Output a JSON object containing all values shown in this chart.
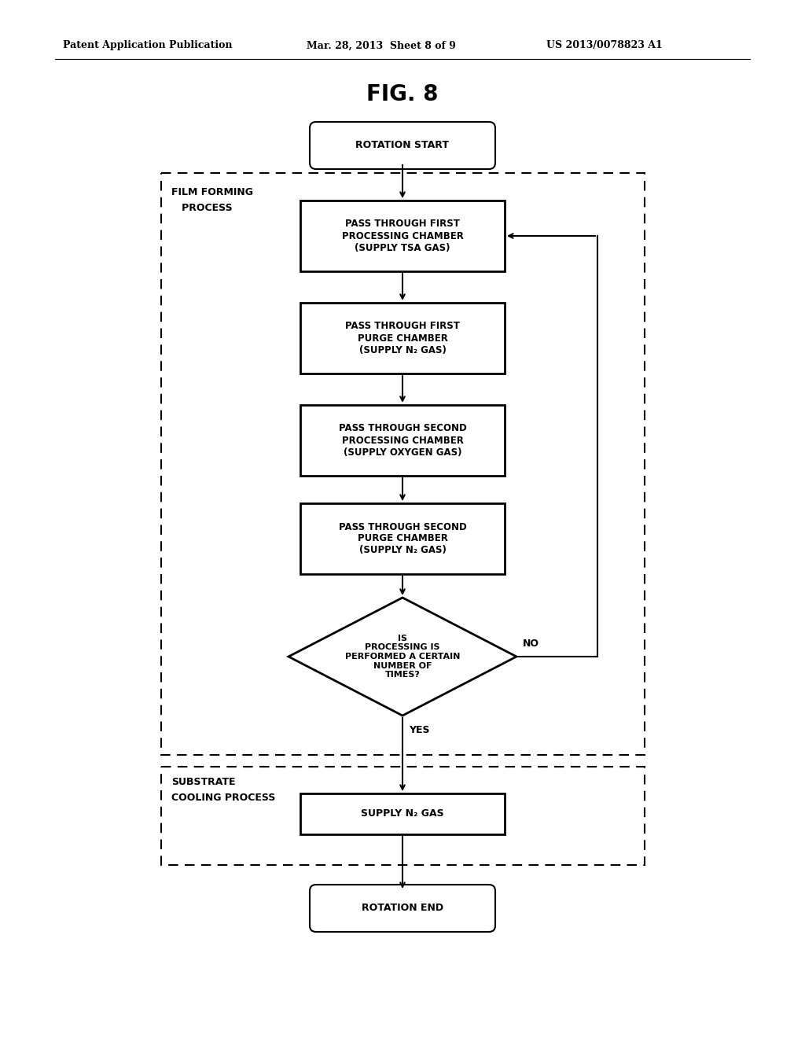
{
  "title": "FIG. 8",
  "header_left": "Patent Application Publication",
  "header_mid": "Mar. 28, 2013  Sheet 8 of 9",
  "header_right": "US 2013/0078823 A1",
  "bg_color": "#ffffff",
  "film_forming_label_line1": "FILM FORMING",
  "film_forming_label_line2": "   PROCESS",
  "cooling_label_line1": "SUBSTRATE",
  "cooling_label_line2": "COOLING PROCESS"
}
